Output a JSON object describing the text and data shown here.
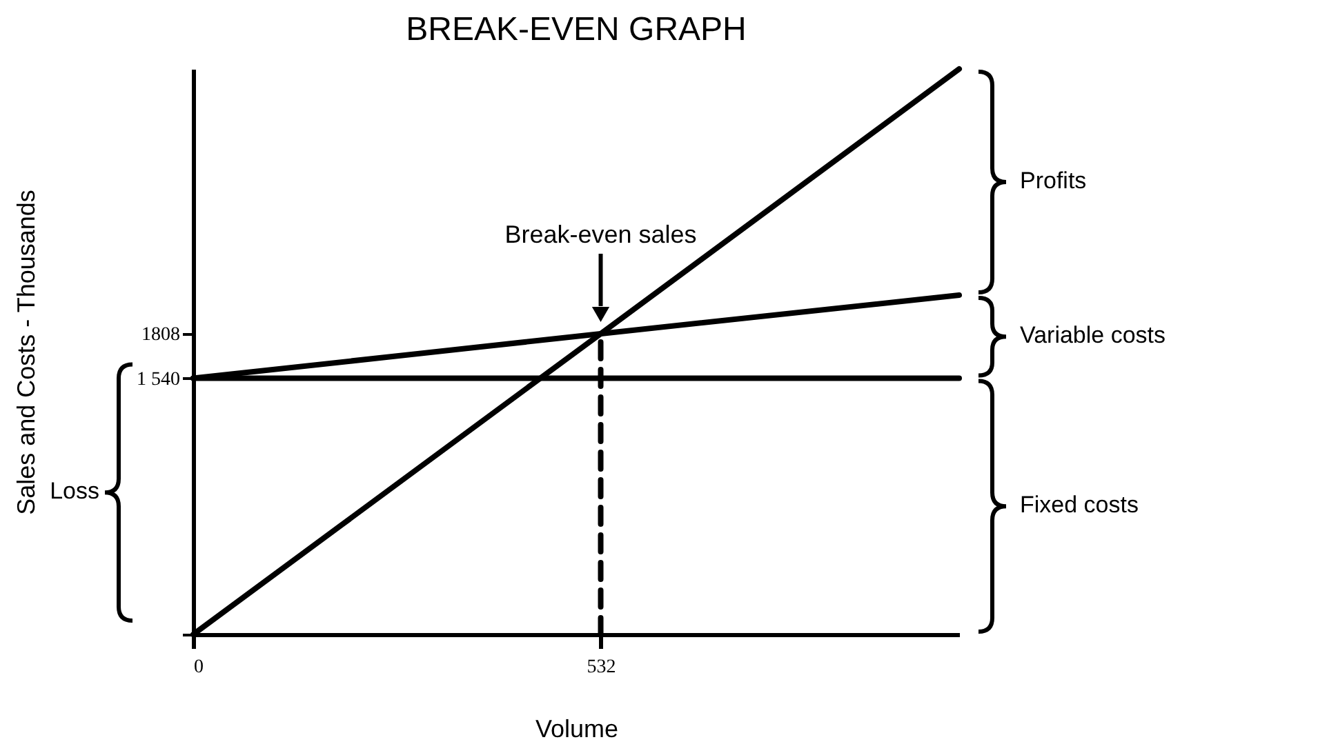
{
  "chart_data": {
    "type": "line",
    "title": "BREAK-EVEN GRAPH",
    "xlabel": "Volume",
    "ylabel": "Sales and Costs - Thousands",
    "xlim": [
      0,
      1000
    ],
    "xticks": [
      0,
      532
    ],
    "ylim": [
      0,
      3400
    ],
    "yticks": [
      {
        "value": 0,
        "label": null
      },
      {
        "value": 1540,
        "label": "1 540"
      },
      1808
    ],
    "series": [
      {
        "color": "#000000",
        "x": [
          0,
          532,
          1000
        ],
        "values": [
          0,
          1808,
          3400
        ]
      },
      {
        "color": "#000000",
        "x": [
          0,
          532,
          1000
        ],
        "values": [
          1540,
          1808,
          2040
        ]
      },
      {
        "color": "#000000",
        "x": [
          0,
          1000
        ],
        "values": [
          1540,
          1540
        ]
      },
      {
        "color": "#000000",
        "x": [
          532,
          532
        ],
        "values": [
          0,
          1808
        ],
        "line_style": "dashed"
      }
    ],
    "annotations": [
      "Break-even sales",
      "Profits",
      "Variable costs",
      "Fixed costs",
      "Loss"
    ]
  }
}
